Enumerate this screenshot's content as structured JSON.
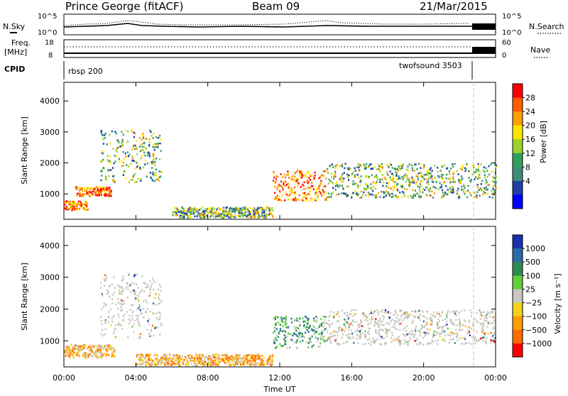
{
  "header": {
    "station": "Prince George (fitACF)",
    "beam": "Beam 09",
    "date": "21/Mar/2015"
  },
  "strips": {
    "nsky_label": "N.Sky",
    "nsky_ticks": [
      "10^5",
      "10^0"
    ],
    "nsearch_label": "N.Search",
    "nsearch_ticks": [
      "10^5",
      "10^0"
    ],
    "freq_label_1": "Freq.",
    "freq_label_2": "[MHz]",
    "freq_ticks": [
      "18",
      "8"
    ],
    "nave_label": "Nave",
    "nave_ticks": [
      "60",
      "0"
    ],
    "cpid_label": "CPID",
    "cpid_segments": [
      {
        "name": "rbsp 200",
        "start_hour": 0.0,
        "end_hour": 22.45
      },
      {
        "name": "twofsound 3503",
        "start_hour": 22.45,
        "end_hour": 24.0
      }
    ]
  },
  "chart_data": [
    {
      "type": "heatmap",
      "panel": "Power",
      "ylabel": "Slant Range [km]",
      "yticks": [
        "4000",
        "3000",
        "2000",
        "1000"
      ],
      "ylim": [
        180,
        4600
      ],
      "xlim": [
        0,
        24
      ],
      "colorbar": {
        "title": "Power [dB]",
        "ticks": [
          "28",
          "24",
          "20",
          "16",
          "12",
          "8",
          "4"
        ],
        "colors": [
          "#ff0000",
          "#ff5a00",
          "#ff9f00",
          "#ffe600",
          "#9bd22a",
          "#2fa05a",
          "#3c8c78",
          "#1f3fa8",
          "#0000ff"
        ]
      },
      "scatter_regions": [
        {
          "hours": [
            0.0,
            1.3
          ],
          "range_km": [
            500,
            800
          ],
          "level": "high"
        },
        {
          "hours": [
            0.6,
            2.6
          ],
          "range_km": [
            950,
            1250
          ],
          "level": "high"
        },
        {
          "hours": [
            2.0,
            5.4
          ],
          "range_km": [
            1400,
            3100
          ],
          "level": "mid"
        },
        {
          "hours": [
            6.0,
            11.6
          ],
          "range_km": [
            250,
            600
          ],
          "level": "mid"
        },
        {
          "hours": [
            11.6,
            14.6
          ],
          "range_km": [
            800,
            1800
          ],
          "level": "high"
        },
        {
          "hours": [
            14.6,
            24.0
          ],
          "range_km": [
            900,
            2000
          ],
          "level": "mid"
        }
      ]
    },
    {
      "type": "heatmap",
      "panel": "Velocity",
      "ylabel": "Slant Range [km]",
      "yticks": [
        "4000",
        "3000",
        "2000",
        "1000"
      ],
      "ylim": [
        180,
        4600
      ],
      "xlim": [
        0,
        24
      ],
      "xticks": [
        "00:00",
        "04:00",
        "08:00",
        "12:00",
        "16:00",
        "20:00",
        "00:00"
      ],
      "xlabel": "Time UT",
      "colorbar": {
        "title": "Velocity [m s⁻¹]",
        "ticks": [
          "1000",
          "500",
          "100",
          "25",
          "−25",
          "−100",
          "−500",
          "−1000"
        ],
        "colors": [
          "#1b2fb0",
          "#2c6aa8",
          "#2e8a50",
          "#5fcf3a",
          "#c8c8c0",
          "#f2d21a",
          "#ff9c00",
          "#ff6a00",
          "#ff0000"
        ]
      },
      "scatter_regions": [
        {
          "hours": [
            0.0,
            2.8
          ],
          "range_km": [
            500,
            900
          ],
          "level": "toward-neg"
        },
        {
          "hours": [
            2.0,
            5.4
          ],
          "range_km": [
            1100,
            3200
          ],
          "level": "ground"
        },
        {
          "hours": [
            4.0,
            11.6
          ],
          "range_km": [
            250,
            600
          ],
          "level": "toward-neg"
        },
        {
          "hours": [
            11.6,
            14.6
          ],
          "range_km": [
            800,
            1800
          ],
          "level": "toward-pos"
        },
        {
          "hours": [
            14.6,
            24.0
          ],
          "range_km": [
            900,
            2000
          ],
          "level": "ground"
        }
      ]
    }
  ]
}
